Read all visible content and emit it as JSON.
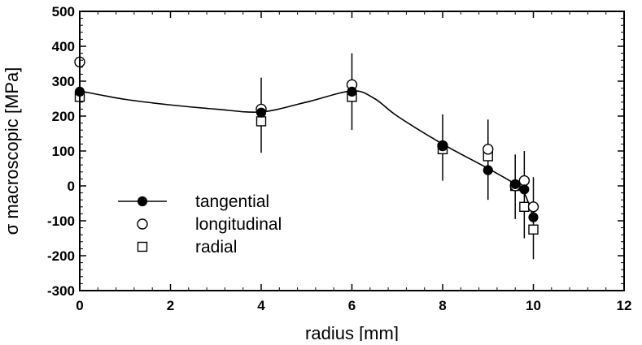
{
  "chart_data": {
    "type": "scatter",
    "xlabel": "radius [mm]",
    "ylabel": "σ macroscopic  [MPa]",
    "xlim": [
      0,
      12
    ],
    "ylim": [
      -300,
      500
    ],
    "x_ticks": [
      0,
      2,
      4,
      6,
      8,
      10,
      12
    ],
    "y_ticks": [
      -300,
      -200,
      -100,
      0,
      100,
      200,
      300,
      400,
      500
    ],
    "grid": false,
    "legend_position": "bottom-left",
    "series": [
      {
        "name": "tangential",
        "marker": "filled-circle",
        "points": [
          {
            "x": 0,
            "y": 270
          },
          {
            "x": 4,
            "y": 210
          },
          {
            "x": 6,
            "y": 270
          },
          {
            "x": 8,
            "y": 115
          },
          {
            "x": 9,
            "y": 45
          },
          {
            "x": 9.6,
            "y": 5
          },
          {
            "x": 9.8,
            "y": -10
          },
          {
            "x": 10,
            "y": -90
          }
        ]
      },
      {
        "name": "longitudinal",
        "marker": "open-circle",
        "points": [
          {
            "x": 0,
            "y": 355
          },
          {
            "x": 4,
            "y": 220
          },
          {
            "x": 6,
            "y": 290
          },
          {
            "x": 8,
            "y": 115
          },
          {
            "x": 9,
            "y": 105
          },
          {
            "x": 9.6,
            "y": 0
          },
          {
            "x": 9.8,
            "y": 15
          },
          {
            "x": 10,
            "y": -60
          }
        ]
      },
      {
        "name": "radial",
        "marker": "open-square",
        "points": [
          {
            "x": 0,
            "y": 255
          },
          {
            "x": 4,
            "y": 185
          },
          {
            "x": 6,
            "y": 255
          },
          {
            "x": 8,
            "y": 105
          },
          {
            "x": 9,
            "y": 85
          },
          {
            "x": 9.6,
            "y": 0
          },
          {
            "x": 9.8,
            "y": -60
          },
          {
            "x": 10,
            "y": -125
          }
        ]
      }
    ],
    "error_bars": [
      {
        "x": 4,
        "low": 95,
        "high": 310
      },
      {
        "x": 6,
        "low": 160,
        "high": 380
      },
      {
        "x": 8,
        "low": 15,
        "high": 205
      },
      {
        "x": 9,
        "low": -40,
        "high": 190
      },
      {
        "x": 9.6,
        "low": -95,
        "high": 90
      },
      {
        "x": 9.8,
        "low": -150,
        "high": 100
      },
      {
        "x": 10,
        "low": -210,
        "high": 25
      }
    ],
    "fit_line": {
      "x": [
        0,
        1,
        2,
        3,
        4,
        5,
        6,
        6.5,
        7,
        8,
        9,
        9.6,
        9.8,
        10
      ],
      "y": [
        272,
        248,
        232,
        220,
        212,
        240,
        272,
        250,
        200,
        120,
        50,
        5,
        -20,
        -90
      ]
    }
  }
}
